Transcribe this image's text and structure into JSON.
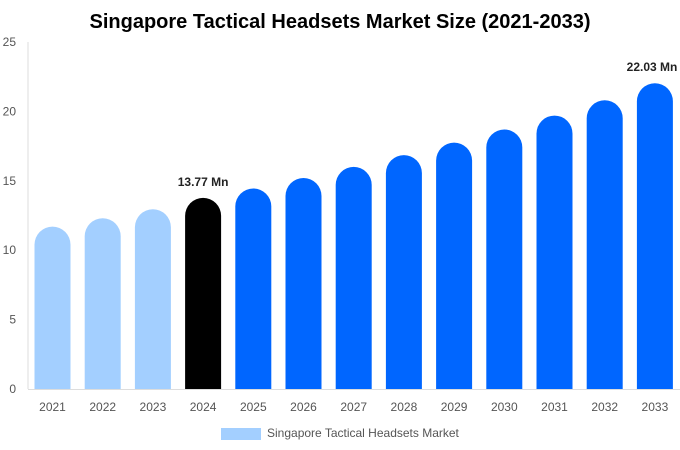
{
  "chart_data": {
    "type": "bar",
    "title": "Singapore Tactical Headsets Market Size (2021-2033)",
    "xlabel": "",
    "ylabel": "",
    "ylim": [
      0,
      25
    ],
    "yticks": [
      0,
      5,
      10,
      15,
      20,
      25
    ],
    "categories": [
      "2021",
      "2022",
      "2023",
      "2024",
      "2025",
      "2026",
      "2027",
      "2028",
      "2029",
      "2030",
      "2031",
      "2032",
      "2033"
    ],
    "series": [
      {
        "name": "Singapore Tactical Headsets Market",
        "values": [
          11.7,
          12.3,
          12.95,
          13.77,
          14.45,
          15.2,
          16.0,
          16.85,
          17.75,
          18.7,
          19.7,
          20.8,
          22.03
        ]
      }
    ],
    "data_labels": [
      {
        "category": "2024",
        "text": "13.77 Mn"
      },
      {
        "category": "2033",
        "text": "22.03 Mn"
      }
    ],
    "colors": {
      "historical": "#a3cfff",
      "current": "#000000",
      "forecast": "#0066ff"
    },
    "grid": false,
    "legend_position": "bottom"
  }
}
